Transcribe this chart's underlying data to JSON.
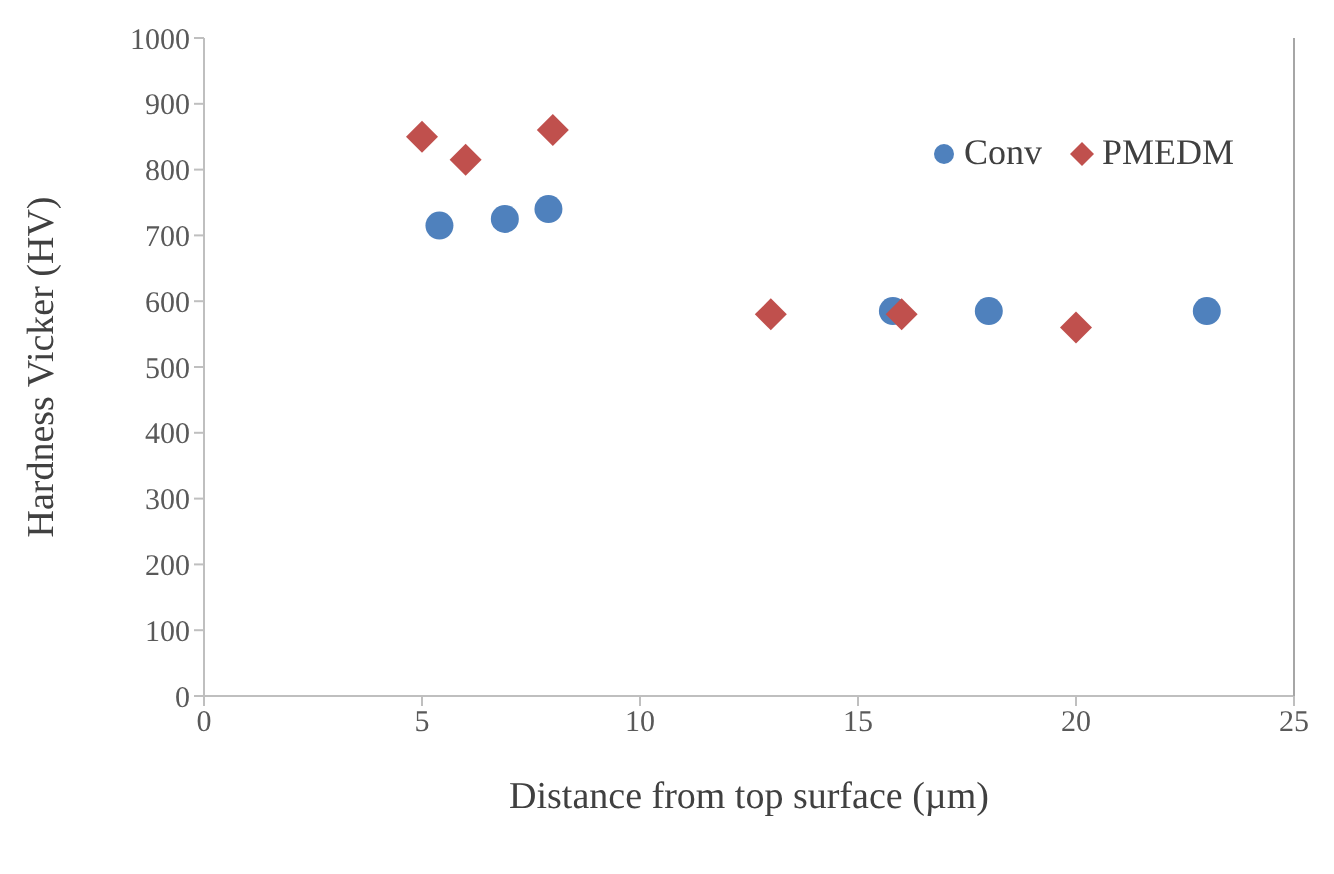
{
  "chart_data": {
    "type": "scatter",
    "xlabel": "Distance from top surface (µm)",
    "ylabel": "Hardness Vicker (HV)",
    "xlim": [
      0,
      25
    ],
    "xticks": [
      0,
      5,
      10,
      15,
      20,
      25
    ],
    "ylim": [
      0,
      1000
    ],
    "yticks": [
      0,
      100,
      200,
      300,
      400,
      500,
      600,
      700,
      800,
      900,
      1000
    ],
    "grid": false,
    "legend": "top right",
    "series": [
      {
        "name": "Conv",
        "color": "#4f81bd",
        "marker": "circle",
        "x": [
          5.4,
          6.9,
          7.9,
          15.8,
          18,
          23
        ],
        "values": [
          715,
          725,
          740,
          585,
          585,
          585
        ]
      },
      {
        "name": "PMEDM",
        "color": "#c0504d",
        "marker": "diamond",
        "x": [
          5,
          6,
          8,
          13,
          16,
          20
        ],
        "values": [
          850,
          815,
          860,
          580,
          580,
          560
        ]
      }
    ]
  }
}
